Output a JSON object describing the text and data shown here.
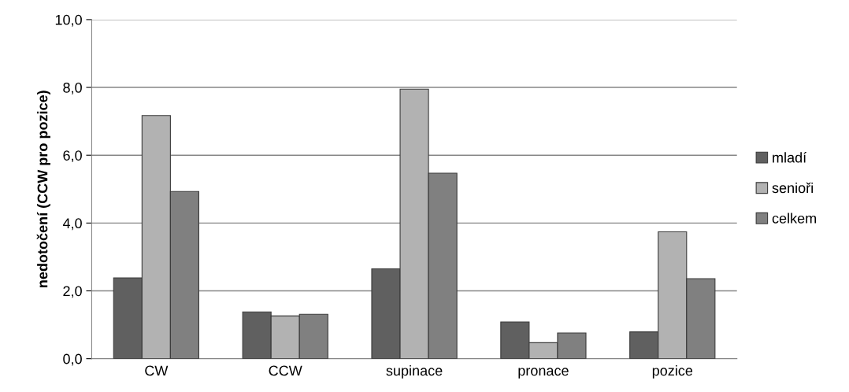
{
  "chart_data": {
    "type": "bar",
    "ylabel": "nedotočení (CCW pro pozice)",
    "categories": [
      "CW",
      "CCW",
      "supinace",
      "pronace",
      "pozice"
    ],
    "series": [
      {
        "name": "mladí",
        "color": "#606060",
        "values": [
          2.38,
          1.38,
          2.65,
          1.08,
          0.79
        ]
      },
      {
        "name": "senioři",
        "color": "#b2b2b2",
        "values": [
          7.17,
          1.26,
          7.95,
          0.47,
          3.74
        ]
      },
      {
        "name": "celkem",
        "color": "#808080",
        "values": [
          4.93,
          1.31,
          5.47,
          0.76,
          2.36
        ]
      }
    ],
    "ylim": [
      0,
      10
    ],
    "yticks": [
      {
        "value": 0,
        "label": "0,0"
      },
      {
        "value": 2,
        "label": "2,0"
      },
      {
        "value": 4,
        "label": "4,0"
      },
      {
        "value": 6,
        "label": "6,0"
      },
      {
        "value": 8,
        "label": "8,0"
      },
      {
        "value": 10,
        "label": "10,0"
      }
    ],
    "grid": "y",
    "legend": "right"
  }
}
